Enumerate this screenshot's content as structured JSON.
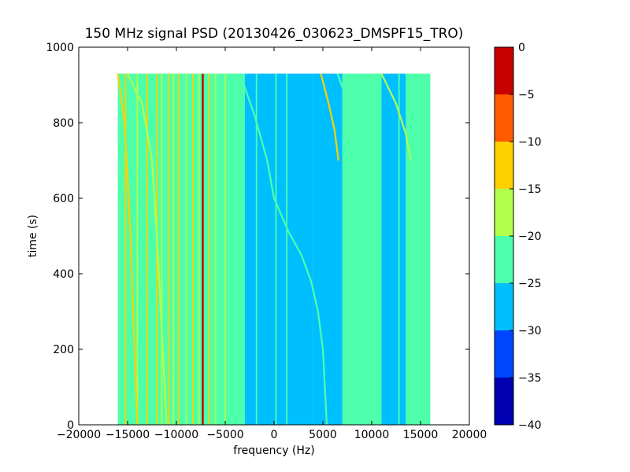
{
  "chart_data": {
    "type": "heatmap",
    "title": "150 MHz signal PSD (20130426_030623_DMSPF15_TRO)",
    "xlabel": "frequency (Hz)",
    "ylabel": "time (s)",
    "xlim": [
      -20000,
      20000
    ],
    "ylim": [
      0,
      1000
    ],
    "x_ticks": [
      -20000,
      -15000,
      -10000,
      -5000,
      0,
      5000,
      10000,
      15000,
      20000
    ],
    "x_tick_labels": [
      "−20000",
      "−15000",
      "−10000",
      "−5000",
      "0",
      "5000",
      "10000",
      "15000",
      "20000"
    ],
    "y_ticks": [
      0,
      200,
      400,
      600,
      800,
      1000
    ],
    "y_tick_labels": [
      "0",
      "200",
      "400",
      "600",
      "800",
      "1000"
    ],
    "data_extent": {
      "x": [
        -16000,
        16000
      ],
      "y": [
        0,
        930
      ]
    },
    "colorbar": {
      "range": [
        -40,
        0
      ],
      "levels": [
        -40,
        -35,
        -30,
        -25,
        -20,
        -15,
        -10,
        -5,
        0
      ],
      "tick_labels": [
        "−40",
        "−35",
        "−30",
        "−25",
        "−20",
        "−15",
        "−10",
        "−5",
        "0"
      ],
      "colors": [
        "#0000b2",
        "#0046ff",
        "#00bfff",
        "#4dffaa",
        "#b2ff4d",
        "#ffd000",
        "#ff5a00",
        "#c80000"
      ]
    },
    "background_regions": [
      {
        "x": [
          -16000,
          -3000
        ],
        "level": -22.5
      },
      {
        "x": [
          -3000,
          4000
        ],
        "level": -27.5
      },
      {
        "x": [
          4000,
          7000
        ],
        "level": -26
      },
      {
        "x": [
          7000,
          11000
        ],
        "level": -24
      },
      {
        "x": [
          11000,
          13500
        ],
        "level": -27.5
      },
      {
        "x": [
          13500,
          16000
        ],
        "level": -23
      }
    ],
    "vertical_lines": [
      {
        "x": -15200,
        "level": -12.5
      },
      {
        "x": -14000,
        "level": -17.5
      },
      {
        "x": -13000,
        "level": -12.5
      },
      {
        "x": -12000,
        "level": -12.5
      },
      {
        "x": -11500,
        "level": -17.5
      },
      {
        "x": -10800,
        "level": -12.5
      },
      {
        "x": -10300,
        "level": -17.5
      },
      {
        "x": -9800,
        "level": -12.5
      },
      {
        "x": -9000,
        "level": -17.5
      },
      {
        "x": -8300,
        "level": -12.5
      },
      {
        "x": -7700,
        "level": -17.5
      },
      {
        "x": -7300,
        "level": -2.5
      },
      {
        "x": -6700,
        "level": -12.5
      },
      {
        "x": -6000,
        "level": -17.5
      },
      {
        "x": -5000,
        "level": -17.5
      },
      {
        "x": -4200,
        "level": -22.5
      },
      {
        "x": -3300,
        "level": -22.5
      },
      {
        "x": -1800,
        "level": -22.5
      },
      {
        "x": 200,
        "level": -22.5
      },
      {
        "x": 1300,
        "level": -22.5
      },
      {
        "x": 10500,
        "level": -22.5
      },
      {
        "x": 12800,
        "level": -22.5
      }
    ],
    "drifting_tracks": [
      {
        "level": -12.5,
        "points": [
          [
            -16000,
            930
          ],
          [
            -15300,
            800
          ],
          [
            -14700,
            500
          ],
          [
            -14300,
            200
          ],
          [
            -14000,
            0
          ]
        ]
      },
      {
        "level": -17.5,
        "points": [
          [
            -15000,
            930
          ],
          [
            -13500,
            850
          ],
          [
            -12500,
            700
          ],
          [
            -12000,
            500
          ],
          [
            -11500,
            250
          ],
          [
            -11000,
            0
          ]
        ]
      },
      {
        "level": -22.5,
        "points": [
          [
            -3500,
            930
          ],
          [
            -2000,
            820
          ],
          [
            -700,
            700
          ],
          [
            0,
            600
          ],
          [
            1500,
            510
          ],
          [
            2800,
            450
          ],
          [
            3800,
            380
          ],
          [
            4500,
            300
          ],
          [
            5000,
            200
          ],
          [
            5400,
            0
          ]
        ]
      },
      {
        "level": -12.5,
        "points": [
          [
            4800,
            930
          ],
          [
            5600,
            850
          ],
          [
            6200,
            780
          ],
          [
            6600,
            700
          ]
        ]
      },
      {
        "level": -22.5,
        "points": [
          [
            6500,
            930
          ],
          [
            7600,
            850
          ],
          [
            8200,
            760
          ]
        ]
      },
      {
        "level": -17.5,
        "points": [
          [
            11000,
            930
          ],
          [
            12500,
            850
          ],
          [
            13500,
            770
          ],
          [
            14000,
            700
          ]
        ]
      },
      {
        "level": -22.5,
        "points": [
          [
            13500,
            930
          ],
          [
            14600,
            850
          ],
          [
            15200,
            780
          ],
          [
            15600,
            700
          ]
        ]
      }
    ]
  }
}
